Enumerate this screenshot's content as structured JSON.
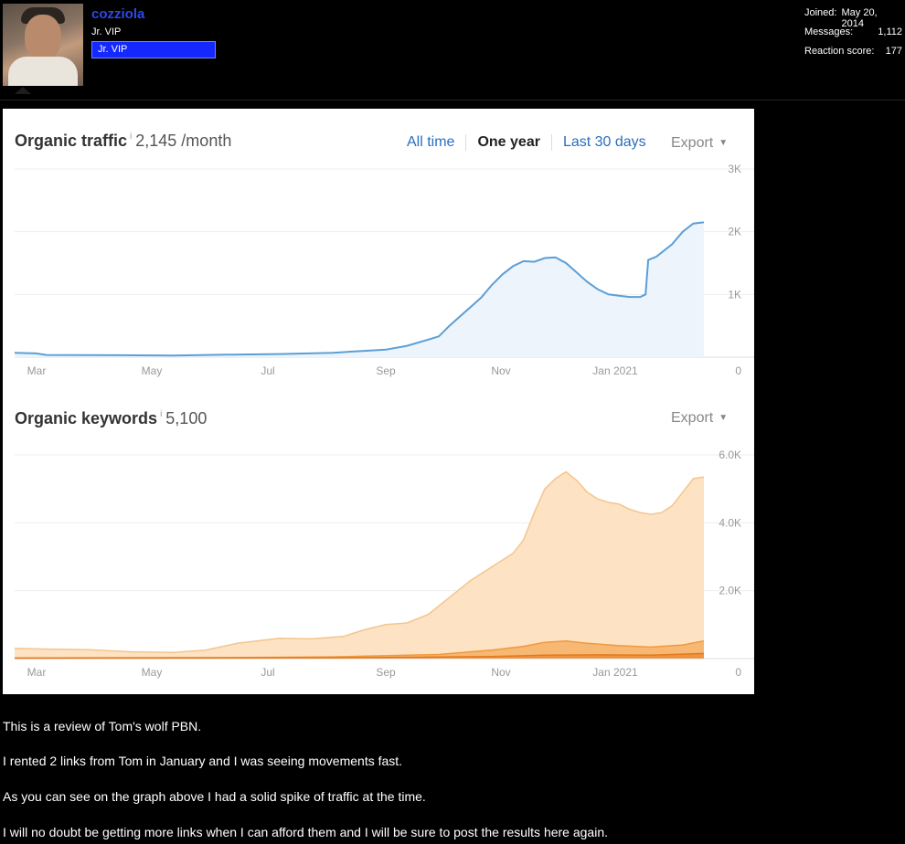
{
  "user": {
    "name": "cozziola",
    "title": "Jr. VIP",
    "banner": "Jr. VIP"
  },
  "stats": {
    "joined_label": "Joined:",
    "joined_value": "May 20, 2014",
    "messages_label": "Messages:",
    "messages_value": "1,112",
    "reaction_label": "Reaction score:",
    "reaction_value": "177"
  },
  "traffic": {
    "title": "Organic traffic",
    "info": "i",
    "value": "2,145 /month",
    "tabs": [
      "All time",
      "One year",
      "Last 30 days"
    ],
    "export": "Export"
  },
  "keywords": {
    "title": "Organic keywords",
    "info": "i",
    "value": "5,100",
    "export": "Export"
  },
  "chart_data": [
    {
      "type": "area",
      "x_ticks": [
        "Mar",
        "May",
        "Jul",
        "Sep",
        "Nov",
        "Jan 2021"
      ],
      "y_ticks": [
        "3K",
        "2K",
        "1K",
        "0"
      ],
      "ylim": [
        0,
        3000
      ],
      "series": [
        {
          "color": "#5b9fd6",
          "points": [
            [
              0,
              70
            ],
            [
              0.04,
              60
            ],
            [
              0.06,
              35
            ],
            [
              0.2,
              30
            ],
            [
              0.3,
              25
            ],
            [
              0.4,
              40
            ],
            [
              0.5,
              50
            ],
            [
              0.6,
              70
            ],
            [
              0.66,
              100
            ],
            [
              0.7,
              120
            ],
            [
              0.74,
              180
            ],
            [
              0.78,
              280
            ],
            [
              0.8,
              330
            ],
            [
              0.82,
              500
            ],
            [
              0.84,
              650
            ],
            [
              0.86,
              800
            ],
            [
              0.88,
              950
            ],
            [
              0.9,
              1150
            ],
            [
              0.92,
              1320
            ],
            [
              0.94,
              1450
            ],
            [
              0.96,
              1530
            ],
            [
              0.98,
              1520
            ],
            [
              1.0,
              1580
            ],
            [
              1.02,
              1590
            ],
            [
              1.04,
              1500
            ],
            [
              1.06,
              1350
            ],
            [
              1.08,
              1200
            ],
            [
              1.1,
              1080
            ],
            [
              1.12,
              1000
            ],
            [
              1.14,
              980
            ],
            [
              1.16,
              960
            ],
            [
              1.18,
              960
            ],
            [
              1.19,
              1000
            ],
            [
              1.195,
              1550
            ],
            [
              1.21,
              1600
            ],
            [
              1.24,
              1800
            ],
            [
              1.26,
              2000
            ],
            [
              1.28,
              2130
            ],
            [
              1.3,
              2150
            ]
          ]
        }
      ]
    },
    {
      "type": "area",
      "x_ticks": [
        "Mar",
        "May",
        "Jul",
        "Sep",
        "Nov",
        "Jan 2021"
      ],
      "y_ticks": [
        "6.0K",
        "4.0K",
        "2.0K",
        "0"
      ],
      "ylim": [
        0,
        6000
      ],
      "series": [
        {
          "color": "#f4c58e",
          "points": [
            [
              0,
              300
            ],
            [
              0.06,
              280
            ],
            [
              0.14,
              260
            ],
            [
              0.22,
              200
            ],
            [
              0.3,
              180
            ],
            [
              0.36,
              250
            ],
            [
              0.42,
              450
            ],
            [
              0.5,
              600
            ],
            [
              0.56,
              580
            ],
            [
              0.62,
              650
            ],
            [
              0.66,
              850
            ],
            [
              0.7,
              1000
            ],
            [
              0.74,
              1050
            ],
            [
              0.78,
              1300
            ],
            [
              0.82,
              1800
            ],
            [
              0.86,
              2300
            ],
            [
              0.9,
              2700
            ],
            [
              0.94,
              3100
            ],
            [
              0.96,
              3500
            ],
            [
              0.98,
              4300
            ],
            [
              1.0,
              5000
            ],
            [
              1.02,
              5300
            ],
            [
              1.04,
              5500
            ],
            [
              1.06,
              5250
            ],
            [
              1.08,
              4900
            ],
            [
              1.1,
              4700
            ],
            [
              1.12,
              4600
            ],
            [
              1.14,
              4550
            ],
            [
              1.16,
              4400
            ],
            [
              1.18,
              4300
            ],
            [
              1.2,
              4250
            ],
            [
              1.22,
              4300
            ],
            [
              1.24,
              4500
            ],
            [
              1.26,
              4900
            ],
            [
              1.28,
              5300
            ],
            [
              1.3,
              5350
            ]
          ]
        },
        {
          "color": "#f0993f",
          "points": [
            [
              0,
              20
            ],
            [
              0.4,
              30
            ],
            [
              0.6,
              50
            ],
            [
              0.8,
              120
            ],
            [
              0.9,
              250
            ],
            [
              0.96,
              360
            ],
            [
              1.0,
              480
            ],
            [
              1.04,
              520
            ],
            [
              1.08,
              450
            ],
            [
              1.14,
              380
            ],
            [
              1.2,
              340
            ],
            [
              1.26,
              400
            ],
            [
              1.3,
              520
            ]
          ]
        },
        {
          "color": "#e07a20",
          "points": [
            [
              0,
              10
            ],
            [
              0.6,
              20
            ],
            [
              0.9,
              60
            ],
            [
              1.0,
              100
            ],
            [
              1.1,
              110
            ],
            [
              1.2,
              100
            ],
            [
              1.3,
              150
            ]
          ]
        }
      ]
    }
  ],
  "post": {
    "lines": [
      "This is a review of Tom's wolf PBN.",
      "I rented 2 links from Tom in January and I was seeing movements fast.",
      "As you can see on the graph above I had a solid spike of traffic at the time.",
      "I will no doubt be getting more links when I can afford them and I will be sure to post the results here again."
    ]
  }
}
